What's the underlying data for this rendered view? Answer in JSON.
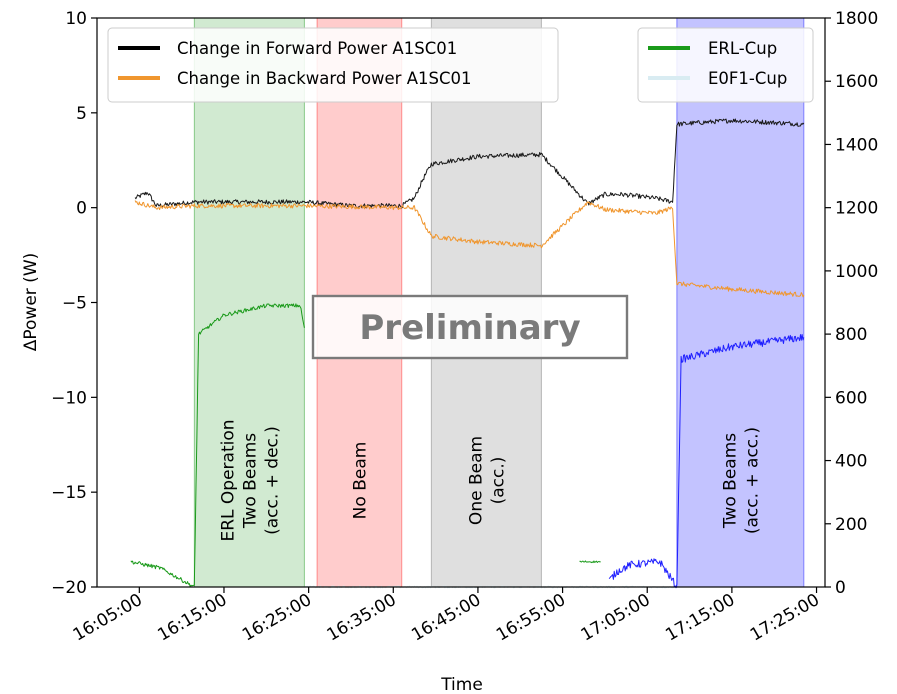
{
  "chart_data": {
    "type": "line",
    "xlabel": "Time",
    "ylabel": "ΔPower (W)",
    "y2label": "",
    "xlim": [
      "16:00:00",
      "17:26:00"
    ],
    "ylim": [
      -20,
      10
    ],
    "y2lim": [
      0,
      1800
    ],
    "x_ticks": [
      "16:05:00",
      "16:15:00",
      "16:25:00",
      "16:35:00",
      "16:45:00",
      "16:55:00",
      "17:05:00",
      "17:15:00",
      "17:25:00"
    ],
    "y_ticks": [
      -20,
      -15,
      -10,
      -5,
      0,
      5,
      10
    ],
    "y2_ticks": [
      0,
      200,
      400,
      600,
      800,
      1000,
      1200,
      1400,
      1600,
      1800
    ],
    "watermark": "Preliminary",
    "legend_left": {
      "position": "upper-left",
      "entries": [
        {
          "label": "Change in Forward Power A1SC01",
          "color": "#000000"
        },
        {
          "label": "Change in Backward Power A1SC01",
          "color": "#f0962e"
        }
      ]
    },
    "legend_right": {
      "position": "upper-right",
      "entries": [
        {
          "label": "ERL-Cup",
          "color": "#1a9a1a"
        },
        {
          "label": "E0F1-Cup",
          "color": "#d9ecf2"
        }
      ]
    },
    "bands": [
      {
        "start": "16:11:30",
        "end": "16:24:30",
        "color": "#2ca02c",
        "opacity": 0.22,
        "label_lines": [
          "ERL Operation",
          "Two Beams",
          "(acc. + dec.)"
        ]
      },
      {
        "start": "16:26:00",
        "end": "16:36:00",
        "color": "#ff3333",
        "opacity": 0.25,
        "label_lines": [
          "No Beam"
        ]
      },
      {
        "start": "16:39:30",
        "end": "16:52:30",
        "color": "#808080",
        "opacity": 0.25,
        "label_lines": [
          "One Beam",
          "(acc.)"
        ]
      },
      {
        "start": "17:08:30",
        "end": "17:23:30",
        "color": "#2020ff",
        "opacity": 0.27,
        "label_lines": [
          "Two Beams",
          "(acc. + acc.)"
        ]
      }
    ],
    "series": [
      {
        "name": "Change in Forward Power A1SC01",
        "axis": "left",
        "color": "#1a1a1a",
        "noise": 0.12,
        "x": [
          "16:04:30",
          "16:06:00",
          "16:07:00",
          "16:11:30",
          "16:24:30",
          "16:30:00",
          "16:36:00",
          "16:37:30",
          "16:38:30",
          "16:39:30",
          "16:45:00",
          "16:52:30",
          "16:58:00",
          "17:00:00",
          "17:02:00",
          "17:06:00",
          "17:08:00",
          "17:08:30",
          "17:15:00",
          "17:23:30"
        ],
        "y": [
          0.5,
          0.8,
          0.1,
          0.3,
          0.3,
          0.1,
          0.1,
          0.5,
          1.5,
          2.3,
          2.7,
          2.8,
          0.2,
          0.7,
          0.7,
          0.5,
          0.3,
          4.4,
          4.6,
          4.4
        ]
      },
      {
        "name": "Change in Backward Power A1SC01",
        "axis": "left",
        "color": "#f0962e",
        "noise": 0.12,
        "x": [
          "16:04:30",
          "16:07:00",
          "16:11:30",
          "16:24:30",
          "16:36:00",
          "16:37:30",
          "16:39:30",
          "16:45:00",
          "16:52:30",
          "16:58:00",
          "17:00:00",
          "17:06:00",
          "17:08:00",
          "17:08:30",
          "17:15:00",
          "17:23:30"
        ],
        "y": [
          0.3,
          0.0,
          0.1,
          0.1,
          0.0,
          0.0,
          -1.5,
          -1.8,
          -2.0,
          0.3,
          -0.1,
          -0.3,
          0.0,
          -4.0,
          -4.3,
          -4.6
        ]
      },
      {
        "name": "E0F1-Cup",
        "axis": "right",
        "color": "#d9ecf2",
        "noise": 3,
        "x": [
          "16:24:30",
          "16:36:00",
          "16:52:30",
          "17:08:30"
        ],
        "y": [
          0,
          0,
          0,
          0
        ]
      },
      {
        "name": "ERL-Cup",
        "axis": "right",
        "color": "#1a9a1a",
        "noise": 6,
        "x": [
          "16:04:00",
          "16:07:30",
          "16:11:30",
          "16:12:00",
          "16:15:00",
          "16:20:00",
          "16:24:00",
          "16:24:30"
        ],
        "y": [
          80,
          60,
          0,
          800,
          860,
          890,
          890,
          820
        ]
      },
      {
        "name": "ERL-Cup",
        "axis": "right",
        "color": "#1a9a1a",
        "noise": 3,
        "x": [
          "16:57:00",
          "16:59:30"
        ],
        "y": [
          80,
          80
        ]
      },
      {
        "name": "",
        "axis": "right",
        "color": "#2020ff",
        "noise": 12,
        "x": [
          "17:00:30",
          "17:01:30",
          "17:03:00",
          "17:06:30",
          "17:08:30",
          "17:09:00",
          "17:15:00",
          "17:23:30"
        ],
        "y": [
          20,
          50,
          70,
          80,
          0,
          720,
          760,
          790
        ]
      }
    ]
  }
}
